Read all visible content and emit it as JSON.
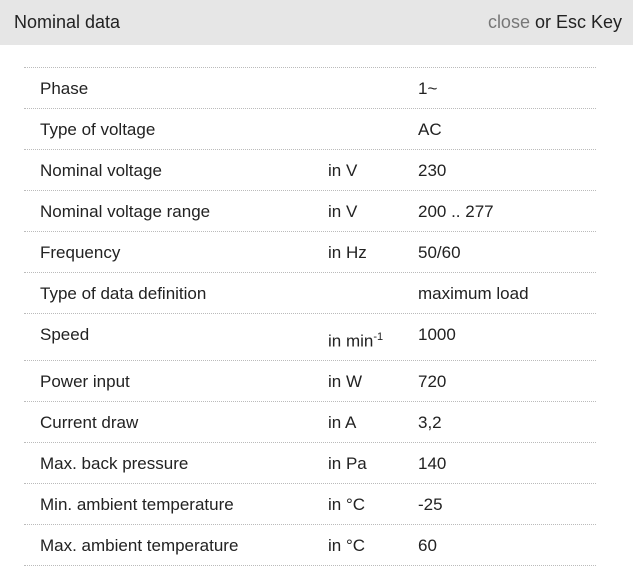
{
  "header": {
    "title": "Nominal data",
    "close_label": "close",
    "close_suffix": " or Esc Key"
  },
  "rows": [
    {
      "label": "Phase",
      "unit": "",
      "value": "1~"
    },
    {
      "label": "Type of voltage",
      "unit": "",
      "value": "AC"
    },
    {
      "label": "Nominal voltage",
      "unit": "in V",
      "value": "230"
    },
    {
      "label": "Nominal voltage range",
      "unit": "in V",
      "value": "200 .. 277"
    },
    {
      "label": "Frequency",
      "unit": "in Hz",
      "value": "50/60"
    },
    {
      "label": "Type of data definition",
      "unit": "",
      "value": "maximum load"
    },
    {
      "label": "Speed",
      "unit": "in min",
      "unit_sup": "-1",
      "value": "1000"
    },
    {
      "label": "Power input",
      "unit": "in W",
      "value": "720"
    },
    {
      "label": "Current draw",
      "unit": "in A",
      "value": "3,2"
    },
    {
      "label": "Max. back pressure",
      "unit": "in Pa",
      "value": "140"
    },
    {
      "label": "Min. ambient temperature",
      "unit": "in °C",
      "value": "-25"
    },
    {
      "label": "Max. ambient temperature",
      "unit": "in °C",
      "value": "60"
    }
  ]
}
